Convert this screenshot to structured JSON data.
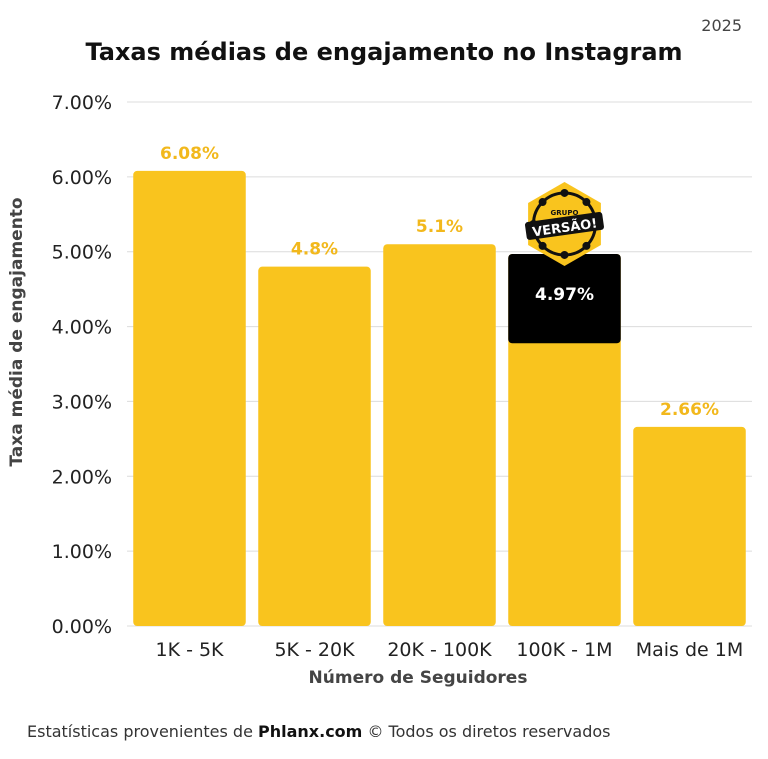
{
  "header": {
    "year": "2025"
  },
  "chart_data": {
    "type": "bar",
    "title": "Taxas médias de engajamento no Instagram",
    "xlabel": "Número de Seguidores",
    "ylabel": "Taxa média de engajamento",
    "categories": [
      "1K - 5K",
      "5K - 20K",
      "20K - 100K",
      "100K - 1M",
      "Mais de 1M"
    ],
    "values": [
      6.08,
      4.8,
      5.1,
      4.97,
      2.66
    ],
    "data_labels": [
      "6.08%",
      "4.8%",
      "5.1%",
      "4.97%",
      "2.66%"
    ],
    "ylim": [
      0,
      7
    ],
    "yticks": [
      0,
      1,
      2,
      3,
      4,
      5,
      6,
      7
    ],
    "ytick_labels": [
      "0.00%",
      "1.00%",
      "2.00%",
      "3.00%",
      "4.00%",
      "5.00%",
      "6.00%",
      "7.00%"
    ],
    "grid": true,
    "bar_color": "#F9C41E",
    "label_color": "#F2B81C",
    "highlight": {
      "category": "100K - 1M",
      "color": "#000000",
      "label_color": "#ffffff",
      "fill_fraction": 0.24
    }
  },
  "badge": {
    "line1": "GRUPO",
    "line2": "VERSÃO!"
  },
  "footer": {
    "prefix": "Estatísticas provenientes de ",
    "source": "Phlanx.com",
    "symbol": "©",
    "suffix": "  Todos os diretos reservados"
  }
}
